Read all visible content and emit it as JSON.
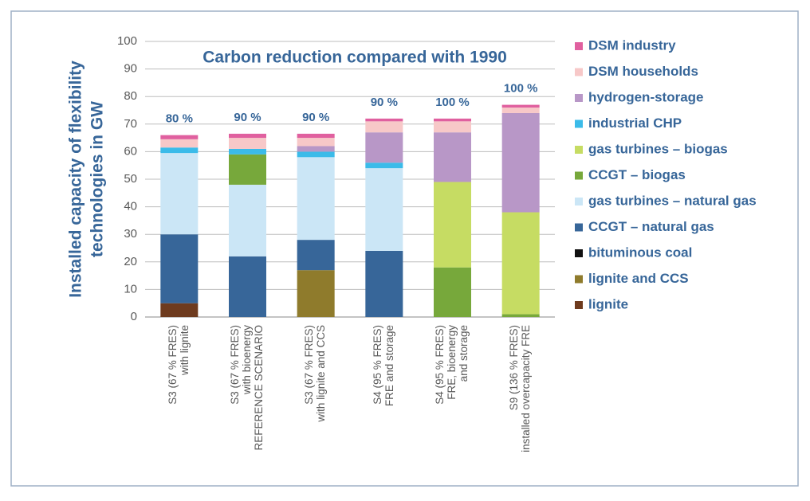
{
  "chart_data": {
    "type": "stacked-bar",
    "title": "Carbon reduction compared with 1990",
    "ylabel": [
      "Installed capacity of flexibility",
      "technologies in GW"
    ],
    "categories": [
      [
        "S3 (67 % FRES)",
        "with lignite"
      ],
      [
        "S3 (67 % FRES)",
        "with bioenergy",
        "REFERENCE SCENARIO"
      ],
      [
        "S3 (67 % FRES)",
        "with lignite and CCS"
      ],
      [
        "S4 (95 % FRES)",
        "FRE and storage"
      ],
      [
        "S4 (95 % FRES)",
        "FRE, bioenergy",
        "and storage"
      ],
      [
        "S9 (136 % FRES)",
        "installed overcapacity FRE"
      ]
    ],
    "annotations": [
      "80 %",
      "90 %",
      "90 %",
      "90 %",
      "100 %",
      "100 %"
    ],
    "series": [
      {
        "name": "lignite",
        "color": "#6e3b1e",
        "values": [
          5,
          0,
          0,
          0,
          0,
          0
        ]
      },
      {
        "name": "lignite and CCS",
        "color": "#8f7b2c",
        "values": [
          0,
          0,
          17,
          0,
          0,
          0
        ]
      },
      {
        "name": "bituminous coal",
        "color": "#111111",
        "values": [
          0,
          0,
          0,
          0,
          0,
          0
        ]
      },
      {
        "name": "CCGT – natural gas",
        "color": "#376699",
        "values": [
          25,
          22,
          11,
          24,
          0,
          0
        ]
      },
      {
        "name": "gas turbines – natural gas",
        "color": "#cbe6f6",
        "values": [
          29.5,
          26,
          30,
          30,
          0,
          0
        ]
      },
      {
        "name": "CCGT – biogas",
        "color": "#77a83b",
        "values": [
          0,
          11,
          0,
          0,
          18,
          1
        ]
      },
      {
        "name": "gas turbines – biogas",
        "color": "#c6dc63",
        "values": [
          0,
          0,
          0,
          0,
          31,
          37
        ]
      },
      {
        "name": "industrial CHP",
        "color": "#3bbbe9",
        "values": [
          2,
          2,
          2,
          2,
          0,
          0
        ]
      },
      {
        "name": "hydrogen-storage",
        "color": "#b897c7",
        "values": [
          0,
          0,
          2,
          11,
          18,
          36
        ]
      },
      {
        "name": "DSM households",
        "color": "#f7c8c8",
        "values": [
          3,
          4,
          3,
          4,
          4,
          2
        ]
      },
      {
        "name": "DSM industry",
        "color": "#e0609f",
        "values": [
          1.5,
          1.5,
          1.5,
          1,
          1,
          1
        ]
      }
    ],
    "ylim": [
      0,
      100
    ],
    "yticks": [
      0,
      10,
      20,
      30,
      40,
      50,
      60,
      70,
      80,
      90,
      100
    ],
    "grid": true
  }
}
